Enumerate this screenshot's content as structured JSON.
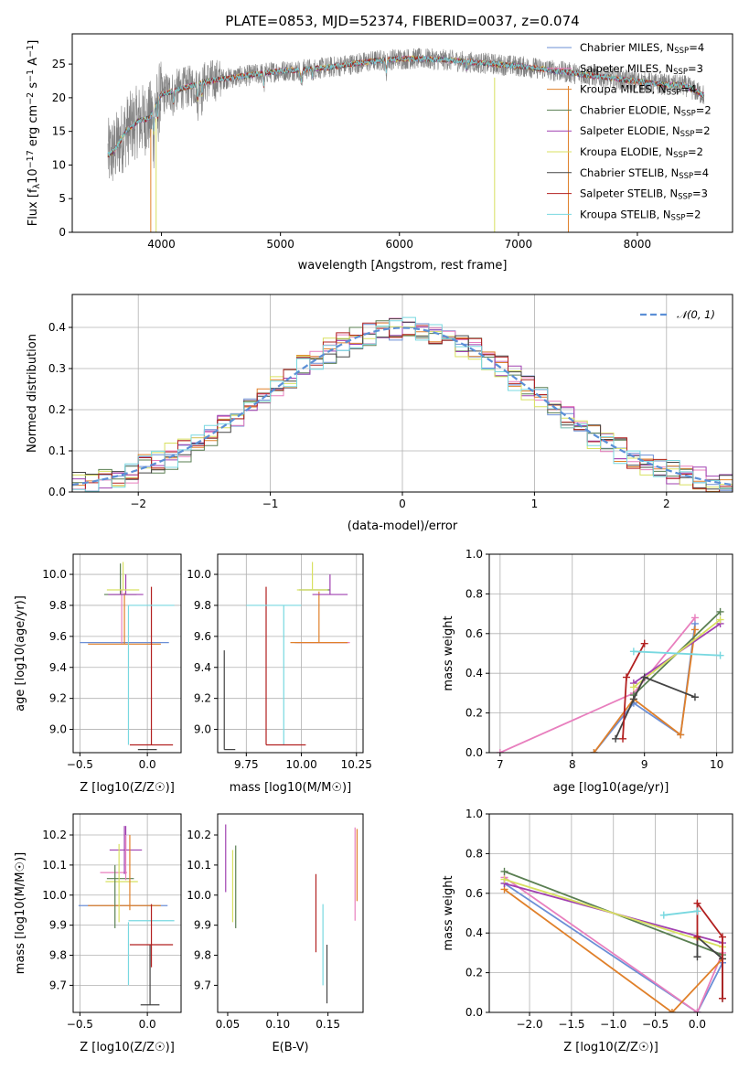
{
  "colors": {
    "Chabrier MILES": "#6b8fd6",
    "Salpeter MILES": "#e87fbe",
    "Kroupa MILES": "#e0802a",
    "Chabrier ELODIE": "#5a7f52",
    "Salpeter ELODIE": "#a040b0",
    "Kroupa ELODIE": "#d8e060",
    "Chabrier STELIB": "#444444",
    "Salpeter STELIB": "#b22020",
    "Kroupa STELIB": "#78d8e0",
    "normal": "#5b8fd6",
    "gray": "#808080"
  },
  "chart_data": [
    {
      "id": "spectrum",
      "type": "line",
      "title": "PLATE=0853, MJD=52374, FIBERID=0037, z=0.074",
      "xlabel": "wavelength [Angstrom, rest frame]",
      "ylabel": "Flux [f",
      "ylabel_parts": [
        "Flux [f",
        "λ",
        "10",
        "−17",
        " erg cm",
        "−2",
        " s",
        "−1",
        " A",
        "−1",
        "]"
      ],
      "xlim": [
        3250,
        8800
      ],
      "ylim": [
        0,
        29.5
      ],
      "xticks": [
        4000,
        5000,
        6000,
        7000,
        8000
      ],
      "yticks": [
        0,
        5,
        10,
        15,
        20,
        25
      ],
      "continuum": {
        "x": [
          3550,
          3600,
          3700,
          3800,
          3900,
          4000,
          4100,
          4200,
          4400,
          4600,
          4800,
          5000,
          5200,
          5400,
          5600,
          5800,
          6000,
          6200,
          6400,
          6600,
          6800,
          7000,
          7200,
          7400,
          7600,
          7800,
          8000,
          8200,
          8400,
          8600
        ],
        "y": [
          11.5,
          12.0,
          15.0,
          16.5,
          17.0,
          20.5,
          21.0,
          21.5,
          22.5,
          23.0,
          23.5,
          24.0,
          24.2,
          24.5,
          25.0,
          25.5,
          25.8,
          25.8,
          25.6,
          25.3,
          25.0,
          24.7,
          24.3,
          23.8,
          23.3,
          22.9,
          22.4,
          22.0,
          21.8,
          20.0
        ]
      },
      "legend": [
        {
          "name": "Chabrier MILES",
          "n_ssp": 4
        },
        {
          "name": "Salpeter MILES",
          "n_ssp": 3
        },
        {
          "name": "Kroupa MILES",
          "n_ssp": 4
        },
        {
          "name": "Chabrier ELODIE",
          "n_ssp": 2
        },
        {
          "name": "Salpeter ELODIE",
          "n_ssp": 2
        },
        {
          "name": "Kroupa ELODIE",
          "n_ssp": 2
        },
        {
          "name": "Chabrier STELIB",
          "n_ssp": 4
        },
        {
          "name": "Salpeter STELIB",
          "n_ssp": 3
        },
        {
          "name": "Kroupa STELIB",
          "n_ssp": 2
        }
      ],
      "legend_text": {
        "prefix": "N",
        "sub": "SSP",
        "eq": "="
      },
      "legend_position": "right"
    },
    {
      "id": "residuals",
      "type": "histogram",
      "xlabel": "(data-model)/error",
      "ylabel": "Normed distribution",
      "xlim": [
        -2.5,
        2.5
      ],
      "ylim": [
        0,
        0.48
      ],
      "xticks": [
        -2,
        -1,
        0,
        1,
        2
      ],
      "yticks": [
        0,
        0.1,
        0.2,
        0.3,
        0.4
      ],
      "grid": true,
      "bin_width": 0.1,
      "normal_label": "𝒩(0, 1)",
      "legend_position": "top-right"
    },
    {
      "id": "age_vs_Z",
      "type": "errorbar",
      "xlabel": "Z [log10(Z/Z☉)]",
      "ylabel": "age  [log10(age/yr)]",
      "xlim": [
        -0.55,
        0.25
      ],
      "ylim": [
        8.85,
        10.13
      ],
      "xticks": [
        -0.5,
        0.0
      ],
      "yticks": [
        9.0,
        9.2,
        9.4,
        9.6,
        9.8,
        10.0
      ],
      "grid": true,
      "points": [
        {
          "name": "Chabrier MILES",
          "x": -0.17,
          "xerr": 0.33,
          "y": 9.56,
          "yerr": 0.0
        },
        {
          "name": "Salpeter MILES",
          "x": -0.19,
          "xerr": 0.0,
          "y": 9.55,
          "yerr": 0.35
        },
        {
          "name": "Kroupa MILES",
          "x": -0.17,
          "xerr": 0.27,
          "y": 9.55,
          "yerr": 0.33
        },
        {
          "name": "Chabrier ELODIE",
          "x": -0.2,
          "xerr": 0.12,
          "y": 9.87,
          "yerr": 0.2
        },
        {
          "name": "Salpeter ELODIE",
          "x": -0.16,
          "xerr": 0.13,
          "y": 9.87,
          "yerr": 0.13
        },
        {
          "name": "Kroupa ELODIE",
          "x": -0.18,
          "xerr": 0.12,
          "y": 9.9,
          "yerr": 0.18
        },
        {
          "name": "Chabrier STELIB",
          "x": 0.0,
          "xerr": 0.07,
          "y": 8.87,
          "yerr": 0.0
        },
        {
          "name": "Salpeter STELIB",
          "x": 0.03,
          "xerr": 0.16,
          "y": 8.9,
          "yerr": 1.02
        },
        {
          "name": "Kroupa STELIB",
          "x": 0.03,
          "xerr": 0.17,
          "y": 9.8,
          "yerr": 0.0
        }
      ],
      "extra_vlines": [
        {
          "name": "Kroupa STELIB",
          "x": -0.14,
          "y0": 8.9,
          "y1": 9.8
        }
      ]
    },
    {
      "id": "age_vs_mass",
      "type": "errorbar",
      "xlabel": "mass [log10(M/M☉)]",
      "ylabel": "",
      "xlim": [
        9.62,
        10.28
      ],
      "ylim": [
        8.85,
        10.13
      ],
      "xticks": [
        9.75,
        10.0,
        10.25
      ],
      "yticks": [
        9.0,
        9.2,
        9.4,
        9.6,
        9.8,
        10.0
      ],
      "grid": true,
      "points": [
        {
          "name": "Chabrier MILES",
          "x": 10.09,
          "xerr": 0.12,
          "y": 9.56,
          "yerr": 0.0
        },
        {
          "name": "Salpeter MILES",
          "x": 10.1,
          "xerr": 0.12,
          "y": 9.56,
          "yerr": 0.0
        },
        {
          "name": "Kroupa MILES",
          "x": 10.08,
          "xerr": 0.13,
          "y": 9.56,
          "yerr": 0.33
        },
        {
          "name": "Chabrier ELODIE",
          "x": 10.06,
          "xerr": 0.07,
          "y": 9.9,
          "yerr": 0.0
        },
        {
          "name": "Salpeter ELODIE",
          "x": 10.13,
          "xerr": 0.08,
          "y": 9.87,
          "yerr": 0.13
        },
        {
          "name": "Kroupa ELODIE",
          "x": 10.05,
          "xerr": 0.07,
          "y": 9.9,
          "yerr": 0.18
        },
        {
          "name": "Chabrier STELIB",
          "x": 9.65,
          "xerr": 0.0,
          "y": 8.87,
          "yerr": 0.64
        },
        {
          "name": "Salpeter STELIB",
          "x": 9.84,
          "xerr": 0.0,
          "y": 8.9,
          "yerr": 1.02
        },
        {
          "name": "Kroupa STELIB",
          "x": 9.92,
          "xerr": 0.0,
          "y": 8.9,
          "yerr": 0.9
        }
      ],
      "extra_hlines": [
        {
          "name": "Chabrier STELIB",
          "y": 8.87,
          "x0": 9.65,
          "x1": 9.7
        },
        {
          "name": "Salpeter STELIB",
          "y": 8.9,
          "x0": 9.84,
          "x1": 10.02
        },
        {
          "name": "Kroupa STELIB",
          "y": 9.8,
          "x0": 9.75,
          "x1": 10.0
        }
      ]
    },
    {
      "id": "weight_vs_age",
      "type": "line",
      "xlabel": "age  [log10(age/yr)]",
      "ylabel": "mass weight",
      "xlim": [
        6.85,
        10.22
      ],
      "ylim": [
        0,
        1.0
      ],
      "xticks": [
        7,
        8,
        9,
        10
      ],
      "yticks": [
        0.0,
        0.2,
        0.4,
        0.6,
        0.8,
        1.0
      ],
      "grid": true,
      "series": [
        {
          "name": "Chabrier MILES",
          "x": [
            8.3,
            8.85,
            9.5,
            9.7
          ],
          "y": [
            0.0,
            0.25,
            0.09,
            0.65
          ]
        },
        {
          "name": "Salpeter MILES",
          "x": [
            7.0,
            8.85,
            9.7
          ],
          "y": [
            0.0,
            0.3,
            0.68
          ]
        },
        {
          "name": "Kroupa MILES",
          "x": [
            8.3,
            8.85,
            9.5,
            9.7
          ],
          "y": [
            0.0,
            0.27,
            0.09,
            0.62
          ]
        },
        {
          "name": "Chabrier ELODIE",
          "x": [
            8.85,
            10.05
          ],
          "y": [
            0.29,
            0.71
          ]
        },
        {
          "name": "Salpeter ELODIE",
          "x": [
            8.85,
            10.05
          ],
          "y": [
            0.35,
            0.65
          ]
        },
        {
          "name": "Kroupa ELODIE",
          "x": [
            8.85,
            10.05
          ],
          "y": [
            0.33,
            0.67
          ]
        },
        {
          "name": "Chabrier STELIB",
          "x": [
            8.6,
            8.85,
            9.0,
            9.7
          ],
          "y": [
            0.07,
            0.27,
            0.38,
            0.28
          ]
        },
        {
          "name": "Salpeter STELIB",
          "x": [
            8.7,
            8.75,
            9.0
          ],
          "y": [
            0.07,
            0.38,
            0.55
          ]
        },
        {
          "name": "Kroupa STELIB",
          "x": [
            8.85,
            10.05
          ],
          "y": [
            0.51,
            0.49
          ]
        }
      ]
    },
    {
      "id": "mass_vs_Z",
      "type": "errorbar",
      "xlabel": "Z [log10(Z/Z☉)]",
      "ylabel": "mass [log10(M/M☉)]",
      "xlim": [
        -0.55,
        0.25
      ],
      "ylim": [
        9.61,
        10.27
      ],
      "xticks": [
        -0.5,
        0.0
      ],
      "yticks": [
        9.7,
        9.8,
        9.9,
        10.0,
        10.1,
        10.2
      ],
      "grid": true,
      "points": [
        {
          "name": "Chabrier MILES",
          "x": -0.18,
          "xerr": 0.33,
          "y": 9.965,
          "yerr": 0.0
        },
        {
          "name": "Salpeter MILES",
          "x": -0.25,
          "xerr": 0.1,
          "y": 10.075,
          "yerr": 0.0
        },
        {
          "name": "Kroupa MILES",
          "x": -0.17,
          "xerr": 0.27,
          "y": 9.965,
          "yerr": 0.0
        },
        {
          "name": "Chabrier ELODIE",
          "x": -0.2,
          "xerr": 0.1,
          "y": 10.055,
          "yerr": 0.0
        },
        {
          "name": "Salpeter ELODIE",
          "x": -0.16,
          "xerr": 0.12,
          "y": 10.15,
          "yerr": 0.08
        },
        {
          "name": "Kroupa ELODIE",
          "x": -0.19,
          "xerr": 0.12,
          "y": 10.045,
          "yerr": 0.0
        },
        {
          "name": "Chabrier STELIB",
          "x": 0.02,
          "xerr": 0.07,
          "y": 9.635,
          "yerr": 0.2
        },
        {
          "name": "Salpeter STELIB",
          "x": 0.03,
          "xerr": 0.16,
          "y": 9.835,
          "yerr": 0.0
        },
        {
          "name": "Kroupa STELIB",
          "x": 0.03,
          "xerr": 0.17,
          "y": 9.915,
          "yerr": 0.0
        }
      ],
      "extra_vlines": [
        {
          "name": "Chabrier ELODIE",
          "x": -0.24,
          "y0": 9.89,
          "y1": 10.1
        },
        {
          "name": "Salpeter ELODIE",
          "x": -0.17,
          "y0": 10.07,
          "y1": 10.23
        },
        {
          "name": "Kroupa ELODIE",
          "x": -0.21,
          "y0": 9.91,
          "y1": 10.17
        },
        {
          "name": "Salpeter MILES",
          "x": -0.16,
          "y0": 10.05,
          "y1": 10.2
        },
        {
          "name": "Kroupa MILES",
          "x": -0.13,
          "y0": 9.95,
          "y1": 10.2
        },
        {
          "name": "Salpeter STELIB",
          "x": 0.03,
          "y0": 9.76,
          "y1": 9.97
        },
        {
          "name": "Kroupa STELIB",
          "x": -0.14,
          "y0": 9.7,
          "y1": 9.91
        }
      ]
    },
    {
      "id": "mass_vs_ebv",
      "type": "errorbar",
      "xlabel": "E(B-V)",
      "ylabel": "",
      "xlim": [
        0.04,
        0.185
      ],
      "ylim": [
        9.61,
        10.27
      ],
      "xticks": [
        0.05,
        0.1,
        0.15
      ],
      "yticks": [
        9.7,
        9.8,
        9.9,
        10.0,
        10.1,
        10.2
      ],
      "grid": false,
      "vlines": [
        {
          "name": "Salpeter ELODIE",
          "x": 0.048,
          "y0": 10.01,
          "y1": 10.235
        },
        {
          "name": "Kroupa ELODIE",
          "x": 0.055,
          "y0": 9.91,
          "y1": 10.15
        },
        {
          "name": "Chabrier ELODIE",
          "x": 0.058,
          "y0": 9.89,
          "y1": 10.165
        },
        {
          "name": "Salpeter STELIB",
          "x": 0.138,
          "y0": 9.81,
          "y1": 10.07
        },
        {
          "name": "Kroupa STELIB",
          "x": 0.145,
          "y0": 9.7,
          "y1": 9.97
        },
        {
          "name": "Chabrier STELIB",
          "x": 0.149,
          "y0": 9.64,
          "y1": 9.835
        },
        {
          "name": "Salpeter MILES",
          "x": 0.177,
          "y0": 9.915,
          "y1": 10.225
        },
        {
          "name": "Kroupa MILES",
          "x": 0.179,
          "y0": 9.98,
          "y1": 10.22
        }
      ]
    },
    {
      "id": "weight_vs_Z",
      "type": "line",
      "xlabel": "Z [log10(Z/Z☉)]",
      "ylabel": "mass weight",
      "xlim": [
        -2.48,
        0.42
      ],
      "ylim": [
        0,
        1.0
      ],
      "xticks": [
        -2.0,
        -1.5,
        -1.0,
        -0.5,
        0.0
      ],
      "yticks": [
        0.0,
        0.2,
        0.4,
        0.6,
        0.8,
        1.0
      ],
      "grid": true,
      "series": [
        {
          "name": "Chabrier MILES",
          "x": [
            -2.3,
            0.0,
            0.3
          ],
          "y": [
            0.65,
            0.0,
            0.25
          ]
        },
        {
          "name": "Salpeter MILES",
          "x": [
            -2.3,
            0.0,
            0.3
          ],
          "y": [
            0.68,
            0.0,
            0.3
          ]
        },
        {
          "name": "Kroupa MILES",
          "x": [
            -2.3,
            -0.3,
            0.3
          ],
          "y": [
            0.62,
            0.0,
            0.27
          ]
        },
        {
          "name": "Chabrier ELODIE",
          "x": [
            -2.3,
            0.3
          ],
          "y": [
            0.71,
            0.29
          ]
        },
        {
          "name": "Salpeter ELODIE",
          "x": [
            -2.3,
            0.3
          ],
          "y": [
            0.65,
            0.35
          ]
        },
        {
          "name": "Kroupa ELODIE",
          "x": [
            -2.3,
            0.3
          ],
          "y": [
            0.67,
            0.33
          ]
        },
        {
          "name": "Chabrier STELIB",
          "x": [
            0.0,
            0.0,
            0.3,
            0.3
          ],
          "y": [
            0.28,
            0.38,
            0.27,
            0.07
          ]
        },
        {
          "name": "Salpeter STELIB",
          "x": [
            0.0,
            0.0,
            0.3,
            0.3
          ],
          "y": [
            0.38,
            0.55,
            0.38,
            0.07
          ]
        },
        {
          "name": "Kroupa STELIB",
          "x": [
            -0.4,
            0.0
          ],
          "y": [
            0.49,
            0.51
          ]
        }
      ]
    }
  ]
}
